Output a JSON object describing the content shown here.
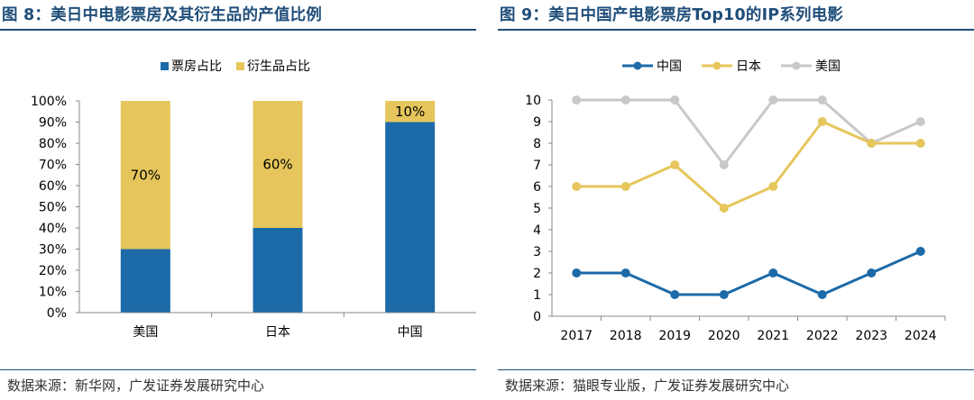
{
  "left": {
    "title": "图 8：美日中电影票房及其衍生品的产值比例",
    "source": "数据来源：新华网，广发证券发展研究中心"
  },
  "right": {
    "title": "图 9：美日中国产电影票房Top10的IP系列电影",
    "source": "数据来源：猫眼专业版，广发证券发展研究中心"
  },
  "colors": {
    "blue": "#1c6aa8",
    "gold": "#e6c65c",
    "gray": "#c8c8c8",
    "title": "#1f4e79"
  },
  "chart_data": [
    {
      "type": "bar",
      "stacked": true,
      "categories": [
        "美国",
        "日本",
        "中国"
      ],
      "series": [
        {
          "name": "票房占比",
          "values": [
            30,
            40,
            90
          ],
          "color": "#1c6aa8"
        },
        {
          "name": "衍生品占比",
          "values": [
            70,
            60,
            10
          ],
          "color": "#e6c65c"
        }
      ],
      "data_labels": [
        "70%",
        "60%",
        "10%"
      ],
      "yticks": [
        "0%",
        "10%",
        "20%",
        "30%",
        "40%",
        "50%",
        "60%",
        "70%",
        "80%",
        "90%",
        "100%"
      ],
      "ylim": [
        0,
        100
      ],
      "legend_position": "top",
      "grid": false
    },
    {
      "type": "line",
      "x": [
        "2017",
        "2018",
        "2019",
        "2020",
        "2021",
        "2022",
        "2023",
        "2024"
      ],
      "series": [
        {
          "name": "中国",
          "values": [
            2,
            2,
            1,
            1,
            2,
            1,
            2,
            3
          ],
          "color": "#1c6aa8"
        },
        {
          "name": "日本",
          "values": [
            6,
            6,
            7,
            5,
            6,
            9,
            8,
            8
          ],
          "color": "#e6c65c"
        },
        {
          "name": "美国",
          "values": [
            10,
            10,
            10,
            7,
            10,
            10,
            8,
            9
          ],
          "color": "#c8c8c8"
        }
      ],
      "yticks": [
        "0",
        "1",
        "2",
        "3",
        "4",
        "5",
        "6",
        "7",
        "8",
        "9",
        "10"
      ],
      "ylim": [
        0,
        10
      ],
      "legend_position": "top",
      "grid": false
    }
  ]
}
